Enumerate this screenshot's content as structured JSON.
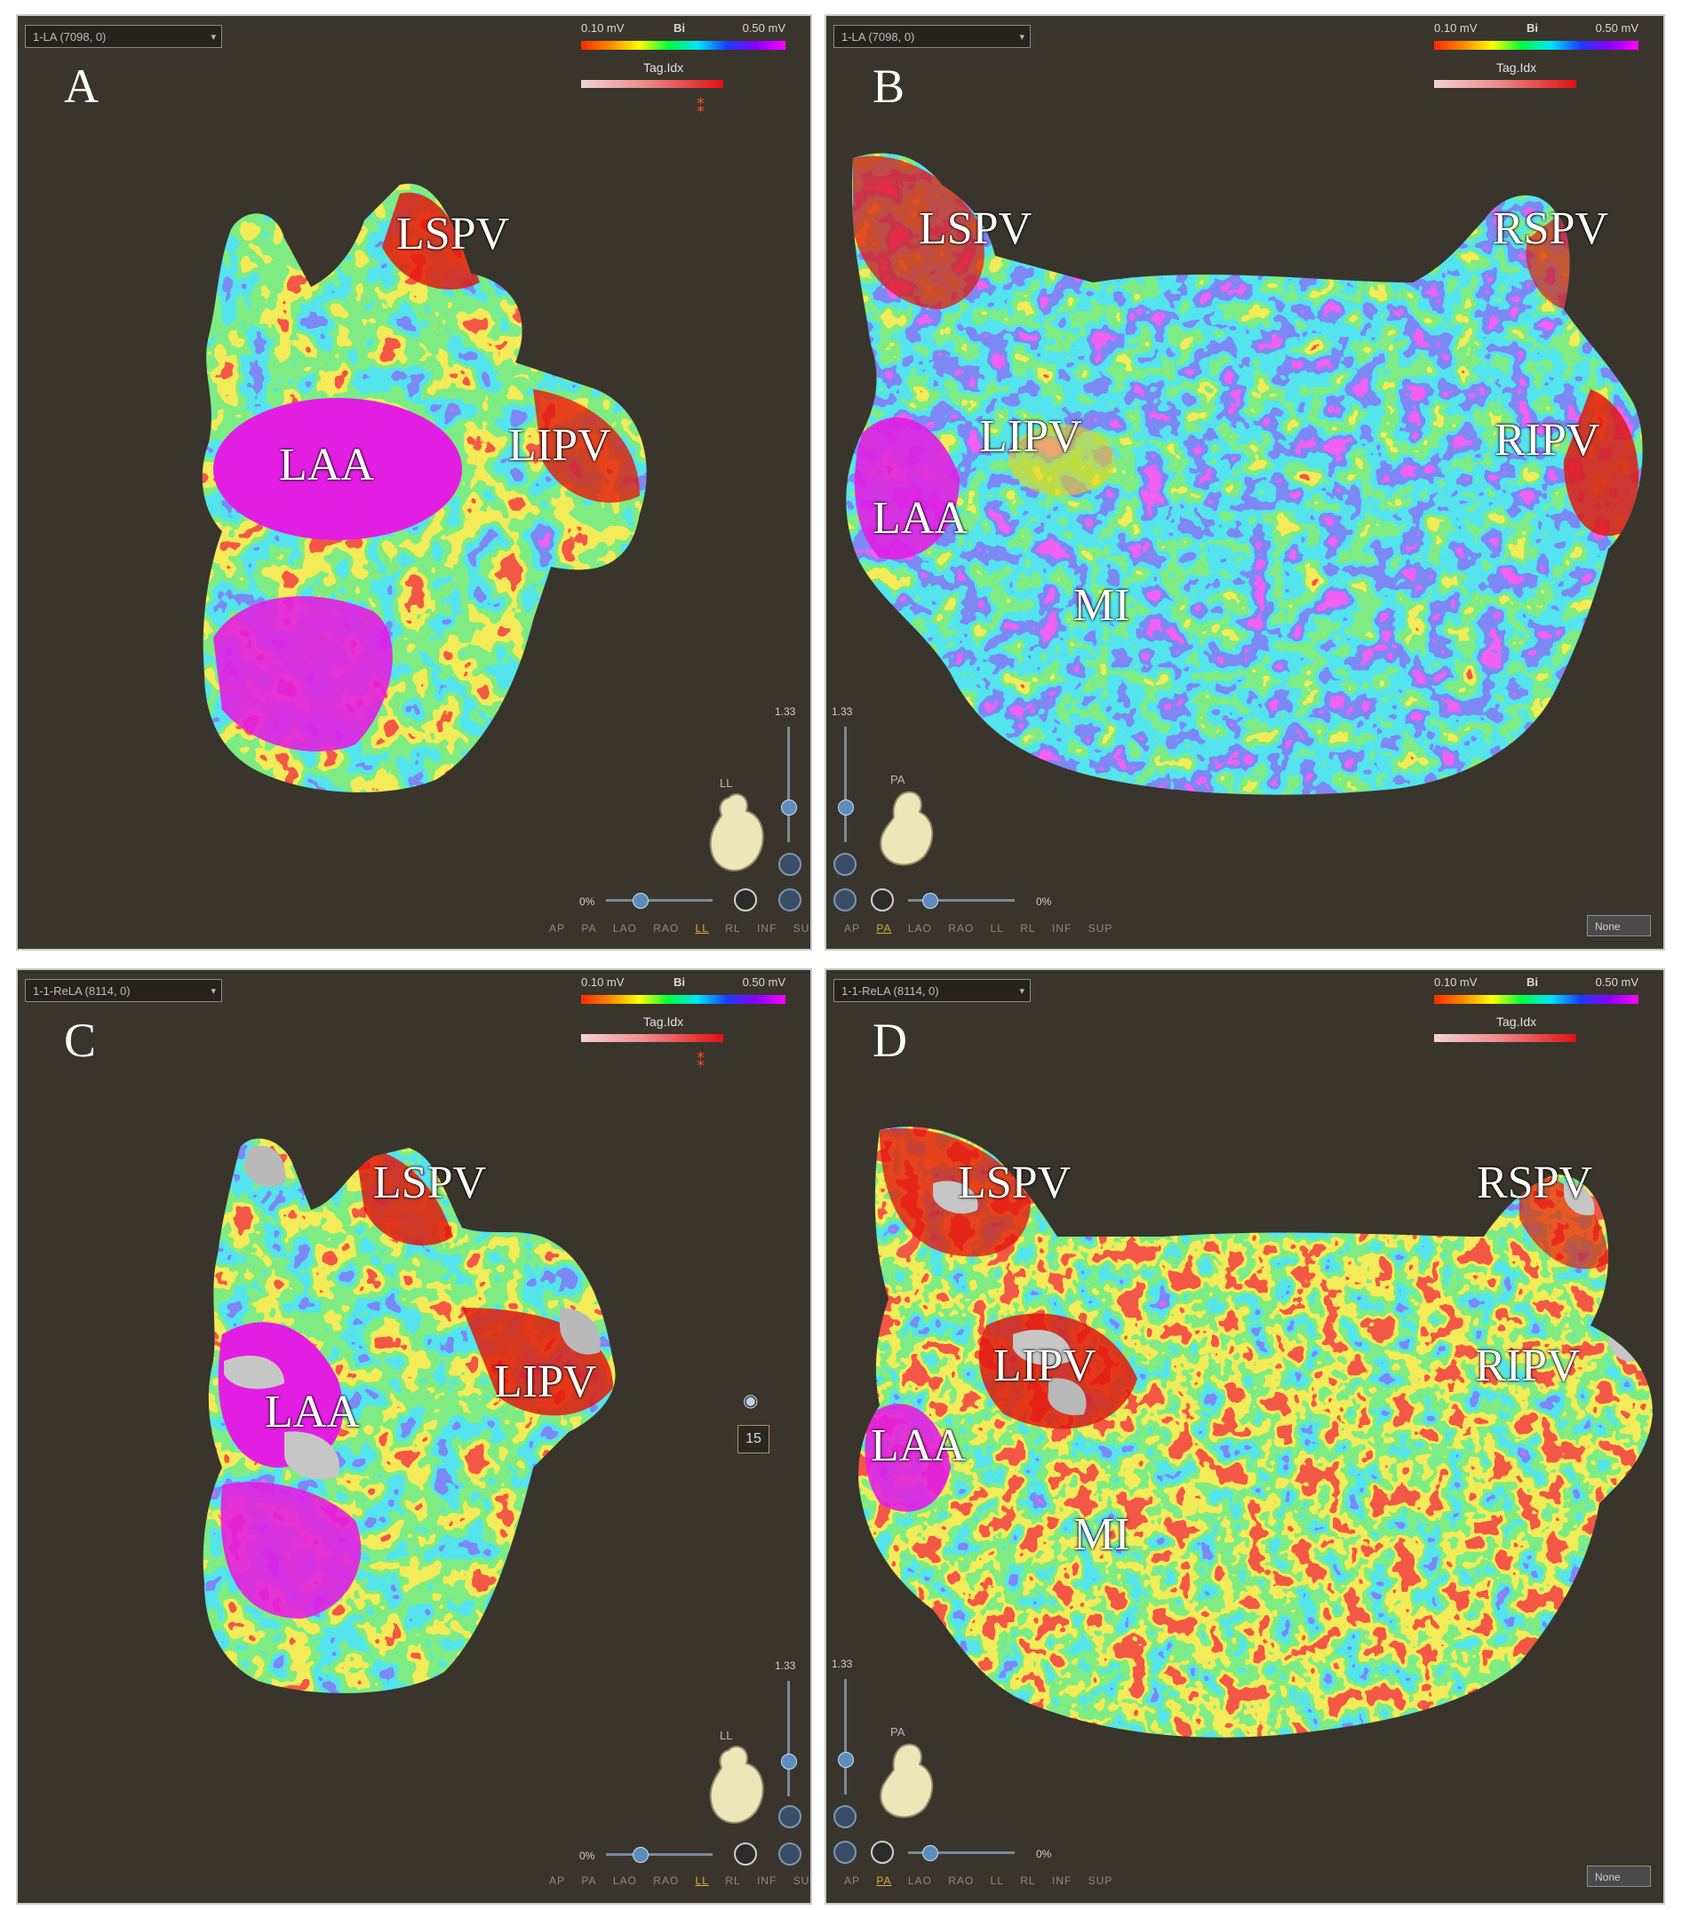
{
  "panels": [
    {
      "letter": "A",
      "map_name": "1-LA (7098, 0)",
      "scale": {
        "min": "0.10 mV",
        "type": "Bi",
        "max": "0.50 mV"
      },
      "tag_label": "Tag.Idx",
      "labels": {
        "lspv": "LSPV",
        "lipv": "LIPV",
        "laa": "LAA"
      },
      "zoom": "1.33",
      "orientation": "LL",
      "percent": "0%",
      "view_presets": [
        "AP",
        "PA",
        "LAO",
        "RAO",
        "LL",
        "RL",
        "INF",
        "SUP"
      ],
      "selected_view": "LL"
    },
    {
      "letter": "B",
      "map_name": "1-LA (7098, 0)",
      "scale": {
        "min": "0.10 mV",
        "type": "Bi",
        "max": "0.50 mV"
      },
      "tag_label": "Tag.Idx",
      "labels": {
        "lspv": "LSPV",
        "rspv": "RSPV",
        "lipv": "LIPV",
        "ripv": "RIPV",
        "laa": "LAA",
        "mi": "MI"
      },
      "zoom": "1.33",
      "orientation": "PA",
      "percent": "0%",
      "view_presets": [
        "AP",
        "PA",
        "LAO",
        "RAO",
        "LL",
        "RL",
        "INF",
        "SUP"
      ],
      "selected_view": "PA",
      "select_value": "None"
    },
    {
      "letter": "C",
      "map_name": "1-1-ReLA (8114, 0)",
      "scale": {
        "min": "0.10 mV",
        "type": "Bi",
        "max": "0.50 mV"
      },
      "tag_label": "Tag.Idx",
      "labels": {
        "lspv": "LSPV",
        "lipv": "LIPV",
        "laa": "LAA"
      },
      "zoom": "1.33",
      "orientation": "LL",
      "percent": "0%",
      "side_value": "15",
      "view_presets": [
        "AP",
        "PA",
        "LAO",
        "RAO",
        "LL",
        "RL",
        "INF",
        "SUP"
      ],
      "selected_view": "LL"
    },
    {
      "letter": "D",
      "map_name": "1-1-ReLA (8114, 0)",
      "scale": {
        "min": "0.10 mV",
        "type": "Bi",
        "max": "0.50 mV"
      },
      "tag_label": "Tag.Idx",
      "labels": {
        "lspv": "LSPV",
        "rspv": "RSPV",
        "lipv": "LIPV",
        "ripv": "RIPV",
        "laa": "LAA",
        "mi": "MI"
      },
      "zoom": "1.33",
      "orientation": "PA",
      "percent": "0%",
      "view_presets": [
        "AP",
        "PA",
        "LAO",
        "RAO",
        "LL",
        "RL",
        "INF",
        "SUP"
      ],
      "selected_view": "PA",
      "select_value": "None"
    }
  ],
  "colors": {
    "background": "#39352c",
    "magenta": "#e21ee3",
    "purple": "#8a1ee0",
    "blue": "#2a3ee6",
    "cyan": "#18c8d8",
    "green": "#36d63a",
    "yellow": "#e6d41a",
    "red": "#e2190f",
    "gray": "#b9b9b9"
  }
}
